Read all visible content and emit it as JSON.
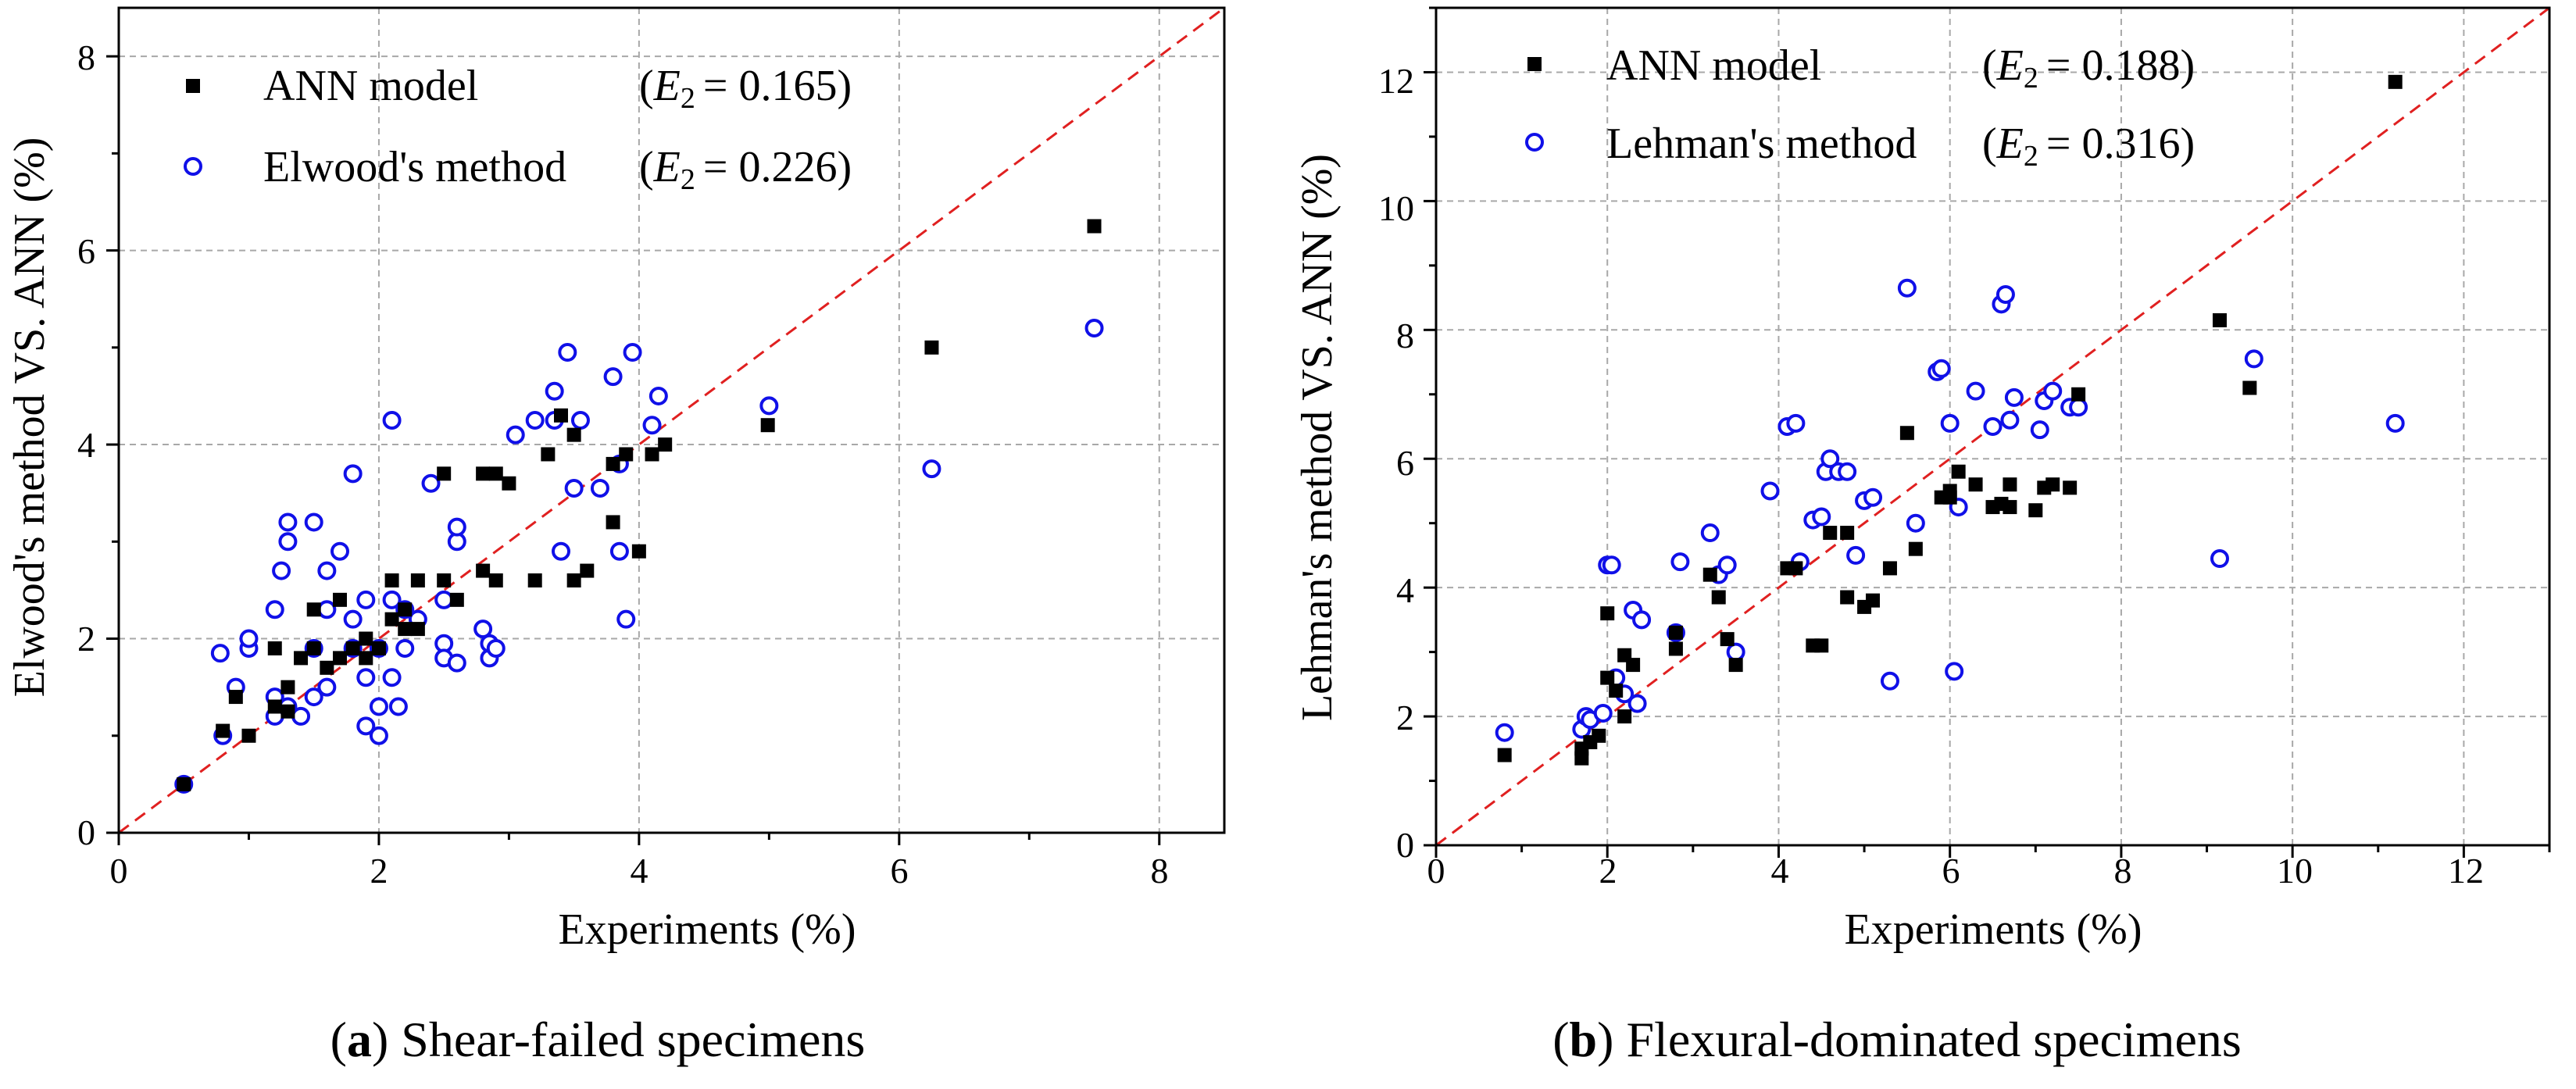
{
  "chart_data": [
    {
      "id": "a",
      "type": "scatter",
      "caption_letter": "a",
      "caption_text": " Shear-failed specimens",
      "xlabel": "Experiments (%)",
      "ylabel": "Elwood's method VS. ANN (%)",
      "xlim": [
        0,
        8.5
      ],
      "ylim": [
        0,
        8.5
      ],
      "xticks": [
        0,
        2,
        4,
        6,
        8
      ],
      "yticks": [
        0,
        2,
        4,
        6,
        8
      ],
      "xtick_labels": [
        "0",
        "2",
        "4",
        "6",
        "8"
      ],
      "ytick_labels": [
        "0",
        "2",
        "4",
        "6",
        "8"
      ],
      "grid": true,
      "reference_line": "y = x",
      "legend_position": "top-left",
      "series": [
        {
          "name": "ANN model",
          "metric_label": "E",
          "metric_subscript": "2",
          "metric_value": "= 0.165)",
          "marker": "square",
          "color": "#000000",
          "points": [
            [
              0.5,
              0.5
            ],
            [
              0.8,
              1.05
            ],
            [
              0.9,
              1.4
            ],
            [
              1.0,
              1.0
            ],
            [
              1.2,
              1.3
            ],
            [
              1.2,
              1.9
            ],
            [
              1.3,
              1.5
            ],
            [
              1.3,
              1.25
            ],
            [
              1.4,
              1.8
            ],
            [
              1.5,
              2.3
            ],
            [
              1.5,
              1.9
            ],
            [
              1.6,
              1.7
            ],
            [
              1.7,
              1.8
            ],
            [
              1.7,
              2.4
            ],
            [
              1.8,
              1.9
            ],
            [
              1.9,
              1.8
            ],
            [
              1.9,
              2.0
            ],
            [
              2.0,
              1.9
            ],
            [
              2.1,
              2.2
            ],
            [
              2.1,
              2.6
            ],
            [
              2.2,
              2.3
            ],
            [
              2.2,
              2.1
            ],
            [
              2.3,
              2.6
            ],
            [
              2.3,
              2.1
            ],
            [
              2.5,
              3.7
            ],
            [
              2.5,
              2.6
            ],
            [
              2.6,
              2.4
            ],
            [
              2.8,
              3.7
            ],
            [
              2.8,
              2.7
            ],
            [
              2.9,
              2.6
            ],
            [
              2.9,
              3.7
            ],
            [
              3.0,
              3.6
            ],
            [
              3.2,
              2.6
            ],
            [
              3.3,
              3.9
            ],
            [
              3.4,
              4.3
            ],
            [
              3.5,
              4.1
            ],
            [
              3.5,
              2.6
            ],
            [
              3.6,
              2.7
            ],
            [
              3.8,
              3.8
            ],
            [
              3.8,
              3.2
            ],
            [
              3.9,
              3.9
            ],
            [
              4.0,
              2.9
            ],
            [
              4.1,
              3.9
            ],
            [
              4.2,
              4.0
            ],
            [
              4.99,
              4.2
            ],
            [
              6.25,
              5.0
            ],
            [
              7.5,
              6.25
            ]
          ]
        },
        {
          "name": "Elwood's method",
          "metric_label": "E",
          "metric_subscript": "2",
          "metric_value": "= 0.226)",
          "marker": "circle",
          "color": "#1010e8",
          "points": [
            [
              0.5,
              0.5
            ],
            [
              0.78,
              1.85
            ],
            [
              0.8,
              1.0
            ],
            [
              0.9,
              1.5
            ],
            [
              1.0,
              1.9
            ],
            [
              1.0,
              2.0
            ],
            [
              1.2,
              1.2
            ],
            [
              1.2,
              1.4
            ],
            [
              1.2,
              2.3
            ],
            [
              1.25,
              2.7
            ],
            [
              1.3,
              3.0
            ],
            [
              1.3,
              3.2
            ],
            [
              1.3,
              1.3
            ],
            [
              1.4,
              1.2
            ],
            [
              1.5,
              3.2
            ],
            [
              1.5,
              1.4
            ],
            [
              1.5,
              1.9
            ],
            [
              1.6,
              2.7
            ],
            [
              1.6,
              2.3
            ],
            [
              1.6,
              1.5
            ],
            [
              1.7,
              2.9
            ],
            [
              1.8,
              3.7
            ],
            [
              1.8,
              2.2
            ],
            [
              1.8,
              1.9
            ],
            [
              1.9,
              1.1
            ],
            [
              1.9,
              2.4
            ],
            [
              1.9,
              1.6
            ],
            [
              2.0,
              1.0
            ],
            [
              2.0,
              1.3
            ],
            [
              2.0,
              1.9
            ],
            [
              2.1,
              4.25
            ],
            [
              2.1,
              2.4
            ],
            [
              2.1,
              1.6
            ],
            [
              2.15,
              1.3
            ],
            [
              2.2,
              2.3
            ],
            [
              2.2,
              1.9
            ],
            [
              2.3,
              2.2
            ],
            [
              2.4,
              3.6
            ],
            [
              2.5,
              1.95
            ],
            [
              2.5,
              2.4
            ],
            [
              2.5,
              1.8
            ],
            [
              2.6,
              3.0
            ],
            [
              2.6,
              3.15
            ],
            [
              2.6,
              1.75
            ],
            [
              2.8,
              2.1
            ],
            [
              2.85,
              1.8
            ],
            [
              2.85,
              1.95
            ],
            [
              2.9,
              1.9
            ],
            [
              3.05,
              4.1
            ],
            [
              3.2,
              4.25
            ],
            [
              3.35,
              4.55
            ],
            [
              3.35,
              4.25
            ],
            [
              3.4,
              2.9
            ],
            [
              3.45,
              4.95
            ],
            [
              3.5,
              3.55
            ],
            [
              3.55,
              4.25
            ],
            [
              3.7,
              3.55
            ],
            [
              3.8,
              4.7
            ],
            [
              3.85,
              2.9
            ],
            [
              3.85,
              3.8
            ],
            [
              3.9,
              2.2
            ],
            [
              3.95,
              4.95
            ],
            [
              4.1,
              4.2
            ],
            [
              4.15,
              4.5
            ],
            [
              5.0,
              4.4
            ],
            [
              6.25,
              3.75
            ],
            [
              7.5,
              5.2
            ]
          ]
        }
      ]
    },
    {
      "id": "b",
      "type": "scatter",
      "caption_letter": "b",
      "caption_text": " Flexural-dominated specimens",
      "xlabel": "Experiments (%)",
      "ylabel": "Lehman's method VS. ANN (%)",
      "xlim": [
        0,
        13
      ],
      "ylim": [
        0,
        13
      ],
      "xticks": [
        0,
        2,
        4,
        6,
        8,
        10,
        12
      ],
      "yticks": [
        0,
        2,
        4,
        6,
        8,
        10,
        12
      ],
      "xtick_labels": [
        "0",
        "2",
        "4",
        "6",
        "8",
        "10",
        "12"
      ],
      "ytick_labels": [
        "0",
        "2",
        "4",
        "6",
        "8",
        "10",
        "12"
      ],
      "grid": true,
      "reference_line": "y = x",
      "legend_position": "top-left",
      "series": [
        {
          "name": "ANN model",
          "metric_label": "E",
          "metric_subscript": "2",
          "metric_value": "= 0.188)",
          "marker": "square",
          "color": "#000000",
          "points": [
            [
              0.8,
              1.4
            ],
            [
              1.7,
              1.35
            ],
            [
              1.7,
              1.5
            ],
            [
              1.8,
              1.6
            ],
            [
              1.9,
              1.7
            ],
            [
              2.0,
              2.6
            ],
            [
              2.0,
              3.6
            ],
            [
              2.1,
              2.4
            ],
            [
              2.2,
              2.0
            ],
            [
              2.2,
              2.95
            ],
            [
              2.3,
              2.8
            ],
            [
              2.8,
              3.3
            ],
            [
              2.8,
              3.05
            ],
            [
              3.2,
              4.2
            ],
            [
              3.3,
              3.85
            ],
            [
              3.4,
              3.2
            ],
            [
              3.5,
              2.8
            ],
            [
              4.1,
              4.3
            ],
            [
              4.2,
              4.3
            ],
            [
              4.4,
              3.1
            ],
            [
              4.5,
              3.1
            ],
            [
              4.6,
              4.85
            ],
            [
              4.8,
              3.85
            ],
            [
              4.8,
              4.85
            ],
            [
              5.0,
              3.7
            ],
            [
              5.1,
              3.8
            ],
            [
              5.3,
              4.3
            ],
            [
              5.5,
              6.4
            ],
            [
              5.6,
              4.6
            ],
            [
              5.9,
              5.4
            ],
            [
              6.0,
              5.4
            ],
            [
              6.0,
              5.5
            ],
            [
              6.1,
              5.8
            ],
            [
              6.3,
              5.6
            ],
            [
              6.5,
              5.25
            ],
            [
              6.6,
              5.3
            ],
            [
              6.7,
              5.6
            ],
            [
              6.7,
              5.25
            ],
            [
              7.0,
              5.2
            ],
            [
              7.1,
              5.55
            ],
            [
              7.2,
              5.6
            ],
            [
              7.4,
              5.55
            ],
            [
              7.5,
              7.0
            ],
            [
              9.15,
              8.15
            ],
            [
              9.5,
              7.1
            ],
            [
              11.2,
              11.85
            ]
          ]
        },
        {
          "name": "Lehman's method",
          "metric_label": "E",
          "metric_subscript": "2",
          "metric_value": "= 0.316)",
          "marker": "circle",
          "color": "#1010e8",
          "points": [
            [
              0.8,
              1.75
            ],
            [
              1.7,
              1.8
            ],
            [
              1.75,
              2.0
            ],
            [
              1.8,
              1.95
            ],
            [
              1.95,
              2.05
            ],
            [
              2.0,
              4.35
            ],
            [
              2.05,
              4.35
            ],
            [
              2.1,
              2.6
            ],
            [
              2.2,
              2.35
            ],
            [
              2.3,
              3.65
            ],
            [
              2.35,
              2.2
            ],
            [
              2.4,
              3.5
            ],
            [
              2.8,
              3.3
            ],
            [
              2.85,
              4.4
            ],
            [
              3.2,
              4.85
            ],
            [
              3.3,
              4.2
            ],
            [
              3.4,
              4.35
            ],
            [
              3.5,
              3.0
            ],
            [
              3.9,
              5.5
            ],
            [
              4.1,
              6.5
            ],
            [
              4.2,
              6.55
            ],
            [
              4.25,
              4.4
            ],
            [
              4.4,
              5.05
            ],
            [
              4.5,
              5.1
            ],
            [
              4.55,
              5.8
            ],
            [
              4.6,
              6.0
            ],
            [
              4.7,
              5.8
            ],
            [
              4.8,
              5.8
            ],
            [
              4.9,
              4.5
            ],
            [
              5.0,
              5.35
            ],
            [
              5.1,
              5.4
            ],
            [
              5.3,
              2.55
            ],
            [
              5.5,
              8.65
            ],
            [
              5.6,
              5.0
            ],
            [
              5.85,
              7.35
            ],
            [
              5.9,
              7.4
            ],
            [
              6.0,
              6.55
            ],
            [
              6.05,
              2.7
            ],
            [
              6.1,
              5.25
            ],
            [
              6.3,
              7.05
            ],
            [
              6.5,
              6.5
            ],
            [
              6.6,
              8.4
            ],
            [
              6.65,
              8.55
            ],
            [
              6.7,
              6.6
            ],
            [
              6.75,
              6.95
            ],
            [
              7.05,
              6.45
            ],
            [
              7.1,
              6.9
            ],
            [
              7.2,
              7.05
            ],
            [
              7.4,
              6.8
            ],
            [
              7.5,
              6.8
            ],
            [
              9.15,
              4.45
            ],
            [
              9.55,
              7.55
            ],
            [
              11.2,
              6.55
            ]
          ]
        }
      ]
    }
  ]
}
